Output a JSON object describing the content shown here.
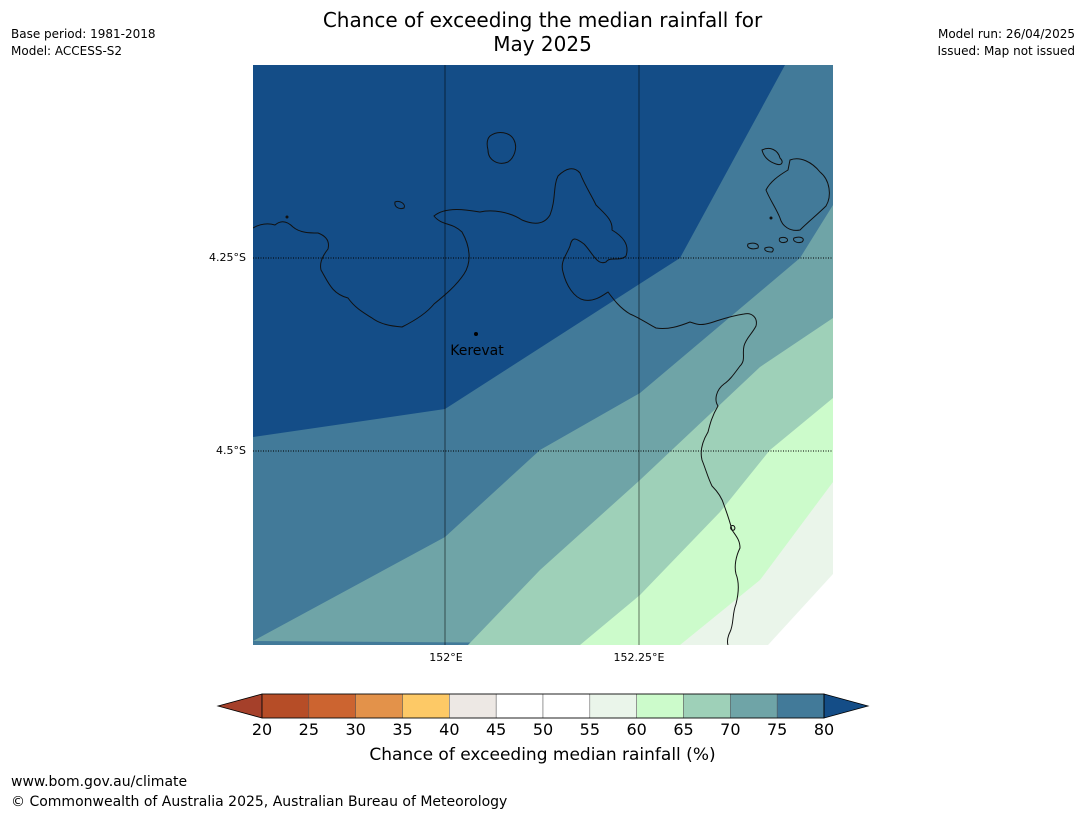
{
  "header": {
    "title_line1": "Chance of exceeding the median rainfall for",
    "title_line2": "May 2025",
    "base_period": "Base period: 1981-2018",
    "model": "Model: ACCESS-S2",
    "model_run": "Model run: 26/04/2025",
    "issued": "Issued: Map not issued"
  },
  "map": {
    "place_label": "Kerevat",
    "lat_labels": [
      "4.25°S",
      "4.5°S"
    ],
    "lon_labels": [
      "152°E",
      "152.25°E"
    ]
  },
  "colorbar": {
    "ticks": [
      "20",
      "25",
      "30",
      "35",
      "40",
      "45",
      "50",
      "55",
      "60",
      "65",
      "70",
      "75",
      "80"
    ],
    "colors": [
      "#a5402a",
      "#b64d27",
      "#cc6430",
      "#e3924a",
      "#fdc966",
      "#ede8e4",
      "#ffffff",
      "#ffffff",
      "#eaf5ea",
      "#ccfbcb",
      "#9ed0b8",
      "#6fa4a7",
      "#427a99",
      "#144d87"
    ],
    "label": "Chance of exceeding median rainfall (%)"
  },
  "footer": {
    "url": "www.bom.gov.au/climate",
    "copyright": "© Commonwealth of Australia 2025, Australian Bureau of Meteorology"
  }
}
